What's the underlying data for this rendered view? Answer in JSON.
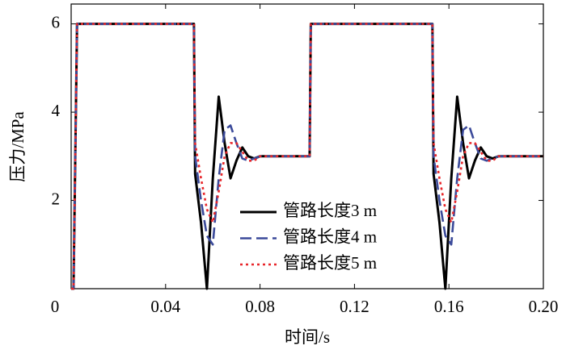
{
  "chart_data": {
    "type": "line",
    "x_label": "时间/s",
    "y_label": "压力/MPa",
    "x": [
      0,
      0.001,
      0.0025,
      0.005,
      0.052,
      0.0525,
      0.055,
      0.0575,
      0.06,
      0.0625,
      0.065,
      0.0675,
      0.07,
      0.0725,
      0.075,
      0.0775,
      0.08,
      0.085,
      0.101,
      0.1015,
      0.1025,
      0.105,
      0.153,
      0.1535,
      0.156,
      0.1585,
      0.161,
      0.1635,
      0.166,
      0.1685,
      0.171,
      0.1735,
      0.176,
      0.1785,
      0.181,
      0.186,
      0.2
    ],
    "series": [
      {
        "name": "管路长度3 m",
        "color": "#000000",
        "dash": "solid",
        "values": [
          0,
          0,
          6,
          6,
          6,
          2.6,
          1.5,
          0,
          2.5,
          4.35,
          3.3,
          2.5,
          2.9,
          3.2,
          3.0,
          2.95,
          3.0,
          3.0,
          3.0,
          6,
          6,
          6,
          6,
          2.6,
          1.5,
          0,
          2.5,
          4.35,
          3.3,
          2.5,
          2.9,
          3.2,
          3.0,
          2.95,
          3.0,
          3.0,
          3.0
        ]
      },
      {
        "name": "管路长度4 m",
        "color": "#3b4a9a",
        "dash": "dashed",
        "values": [
          0,
          0,
          6,
          6,
          6,
          3.0,
          2.0,
          1.2,
          1.0,
          2.5,
          3.6,
          3.7,
          3.3,
          2.95,
          2.9,
          2.95,
          3.0,
          3.0,
          3.0,
          6,
          6,
          6,
          6,
          3.0,
          2.0,
          1.2,
          1.0,
          2.5,
          3.6,
          3.7,
          3.3,
          2.95,
          2.9,
          2.95,
          3.0,
          3.0,
          3.0
        ]
      },
      {
        "name": "管路长度5 m",
        "color": "#e8262a",
        "dash": "dotted",
        "values": [
          0,
          0,
          6,
          6,
          6,
          3.3,
          2.5,
          1.8,
          1.5,
          2.2,
          3.0,
          3.3,
          3.3,
          3.1,
          2.9,
          2.9,
          3.0,
          3.0,
          3.0,
          6,
          6,
          6,
          6,
          3.3,
          2.5,
          1.8,
          1.5,
          2.2,
          3.0,
          3.3,
          3.3,
          3.1,
          2.9,
          2.9,
          3.0,
          3.0,
          3.0
        ]
      }
    ],
    "xlim": [
      0,
      0.2
    ],
    "ylim": [
      0,
      6.45
    ],
    "xticks": [
      0,
      0.04,
      0.08,
      0.12,
      0.16,
      {
        "value": 0.2,
        "label": "0.20"
      }
    ],
    "yticks": [
      2,
      4,
      6
    ],
    "grid": false,
    "legend": "lower center"
  }
}
